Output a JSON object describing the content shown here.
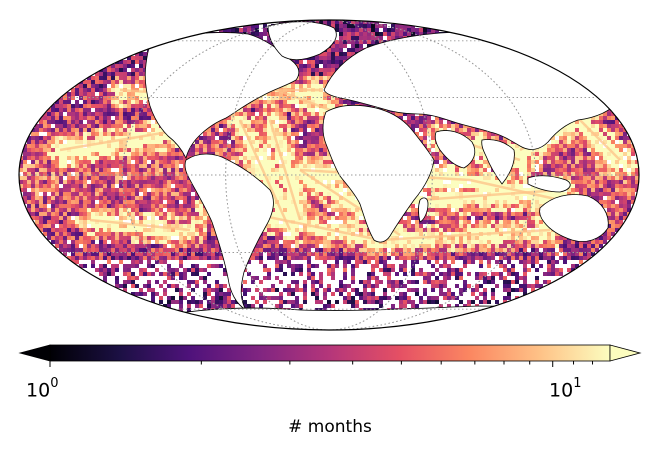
{
  "map": {
    "projection": "Mollweide",
    "gridlines": true,
    "colormap": "magma",
    "colormap_stops": [
      "#000004",
      "#1c1044",
      "#4f127b",
      "#812581",
      "#b5367a",
      "#e55064",
      "#fb8761",
      "#fec287",
      "#fcfdbf"
    ],
    "land_color": "#ffffff",
    "coastline_color": "#000000"
  },
  "colorbar": {
    "label": "# months",
    "scale": "log",
    "extend": "both",
    "range": [
      1,
      13
    ],
    "ticks": [
      {
        "value": 1,
        "base": "10",
        "exponent": "0"
      },
      {
        "value": 10,
        "base": "10",
        "exponent": "1"
      }
    ]
  }
}
